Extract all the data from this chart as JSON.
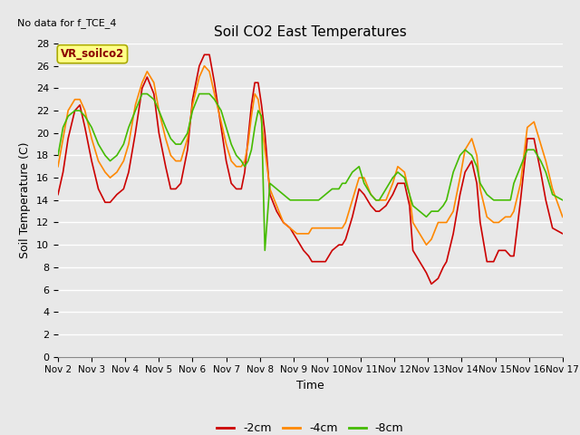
{
  "title": "Soil CO2 East Temperatures",
  "no_data_text": "No data for f_TCE_4",
  "label_text": "VR_soilco2",
  "xlabel": "Time",
  "ylabel": "Soil Temperature (C)",
  "ylim": [
    0,
    28
  ],
  "yticks": [
    0,
    2,
    4,
    6,
    8,
    10,
    12,
    14,
    16,
    18,
    20,
    22,
    24,
    26,
    28
  ],
  "background_color": "#e8e8e8",
  "series": {
    "-2cm": {
      "color": "#cc0000",
      "lw": 1.2
    },
    "-4cm": {
      "color": "#ff8800",
      "lw": 1.2
    },
    "-8cm": {
      "color": "#44bb00",
      "lw": 1.2
    }
  },
  "x_start": 2,
  "x_end": 17,
  "xtick_labels": [
    "Nov 2",
    "Nov 3",
    "Nov 4",
    "Nov 5",
    "Nov 6",
    "Nov 7",
    "Nov 8",
    "Nov 9",
    "Nov 10",
    "Nov 11",
    "Nov 12",
    "Nov 13",
    "Nov 14",
    "Nov 15",
    "Nov 16",
    "Nov 17"
  ],
  "xtick_positions": [
    2,
    3,
    4,
    5,
    6,
    7,
    8,
    9,
    10,
    11,
    12,
    13,
    14,
    15,
    16,
    17
  ],
  "cm2_x": [
    2.0,
    2.15,
    2.3,
    2.5,
    2.65,
    2.8,
    3.0,
    3.2,
    3.4,
    3.55,
    3.75,
    3.95,
    4.1,
    4.3,
    4.5,
    4.65,
    4.85,
    5.0,
    5.2,
    5.35,
    5.5,
    5.65,
    5.85,
    6.0,
    6.2,
    6.35,
    6.5,
    6.65,
    6.85,
    7.0,
    7.15,
    7.3,
    7.45,
    7.55,
    7.65,
    7.75,
    7.85,
    7.95,
    8.05,
    8.15,
    8.3,
    8.5,
    8.7,
    8.9,
    9.1,
    9.3,
    9.45,
    9.55,
    9.75,
    9.95,
    10.15,
    10.35,
    10.45,
    10.55,
    10.75,
    10.95,
    11.1,
    11.3,
    11.45,
    11.55,
    11.75,
    11.95,
    12.1,
    12.3,
    12.45,
    12.55,
    12.75,
    12.95,
    13.1,
    13.3,
    13.45,
    13.55,
    13.75,
    13.95,
    14.1,
    14.3,
    14.45,
    14.55,
    14.75,
    14.95,
    15.1,
    15.3,
    15.45,
    15.55,
    15.75,
    15.95,
    16.15,
    16.35,
    16.5,
    16.7,
    17.0
  ],
  "cm2_y": [
    14.5,
    16.5,
    19.5,
    22.0,
    22.5,
    20.5,
    17.5,
    15.0,
    13.8,
    13.8,
    14.5,
    15.0,
    16.5,
    20.0,
    24.0,
    25.0,
    23.5,
    20.0,
    17.0,
    15.0,
    15.0,
    15.5,
    18.5,
    23.0,
    26.0,
    27.0,
    27.0,
    24.5,
    20.5,
    17.5,
    15.5,
    15.0,
    15.0,
    16.5,
    19.5,
    22.5,
    24.5,
    24.5,
    22.5,
    20.0,
    14.5,
    13.0,
    12.0,
    11.5,
    10.5,
    9.5,
    9.0,
    8.5,
    8.5,
    8.5,
    9.5,
    10.0,
    10.0,
    10.5,
    12.5,
    15.0,
    14.5,
    13.5,
    13.0,
    13.0,
    13.5,
    14.5,
    15.5,
    15.5,
    13.5,
    9.5,
    8.5,
    7.5,
    6.5,
    7.0,
    8.0,
    8.5,
    11.0,
    14.5,
    16.5,
    17.5,
    15.5,
    12.0,
    8.5,
    8.5,
    9.5,
    9.5,
    9.0,
    9.0,
    14.0,
    19.5,
    19.5,
    16.5,
    14.0,
    11.5,
    11.0
  ],
  "cm4_x": [
    2.0,
    2.15,
    2.3,
    2.5,
    2.65,
    2.8,
    3.0,
    3.2,
    3.4,
    3.55,
    3.75,
    3.95,
    4.1,
    4.3,
    4.5,
    4.65,
    4.85,
    5.0,
    5.2,
    5.35,
    5.5,
    5.65,
    5.85,
    6.0,
    6.2,
    6.35,
    6.5,
    6.65,
    6.85,
    7.0,
    7.15,
    7.3,
    7.45,
    7.55,
    7.65,
    7.75,
    7.85,
    7.95,
    8.05,
    8.15,
    8.3,
    8.5,
    8.7,
    8.9,
    9.1,
    9.3,
    9.45,
    9.55,
    9.75,
    9.95,
    10.15,
    10.35,
    10.45,
    10.55,
    10.75,
    10.95,
    11.1,
    11.3,
    11.45,
    11.55,
    11.75,
    11.95,
    12.1,
    12.3,
    12.45,
    12.55,
    12.75,
    12.95,
    13.1,
    13.3,
    13.45,
    13.55,
    13.75,
    13.95,
    14.1,
    14.3,
    14.45,
    14.55,
    14.75,
    14.95,
    15.1,
    15.3,
    15.45,
    15.55,
    15.75,
    15.95,
    16.15,
    16.35,
    16.5,
    16.7,
    17.0
  ],
  "cm4_y": [
    17.0,
    19.5,
    22.0,
    23.0,
    23.0,
    22.0,
    19.5,
    17.5,
    16.5,
    16.0,
    16.5,
    17.5,
    19.0,
    22.5,
    24.5,
    25.5,
    24.5,
    22.0,
    19.5,
    18.0,
    17.5,
    17.5,
    19.5,
    22.5,
    25.0,
    26.0,
    25.5,
    23.5,
    21.0,
    19.0,
    17.5,
    17.0,
    17.0,
    17.5,
    19.0,
    21.5,
    23.5,
    23.0,
    21.0,
    18.5,
    15.0,
    13.5,
    12.0,
    11.5,
    11.0,
    11.0,
    11.0,
    11.5,
    11.5,
    11.5,
    11.5,
    11.5,
    11.5,
    12.0,
    14.0,
    16.0,
    16.0,
    14.5,
    14.0,
    14.0,
    14.0,
    15.5,
    17.0,
    16.5,
    14.5,
    12.0,
    11.0,
    10.0,
    10.5,
    12.0,
    12.0,
    12.0,
    13.0,
    16.0,
    18.5,
    19.5,
    18.0,
    15.0,
    12.5,
    12.0,
    12.0,
    12.5,
    12.5,
    13.0,
    15.5,
    20.5,
    21.0,
    19.0,
    17.5,
    15.0,
    12.5
  ],
  "cm8_x": [
    2.0,
    2.15,
    2.3,
    2.5,
    2.65,
    2.8,
    3.0,
    3.2,
    3.4,
    3.55,
    3.75,
    3.95,
    4.1,
    4.3,
    4.5,
    4.65,
    4.85,
    5.0,
    5.2,
    5.35,
    5.5,
    5.65,
    5.85,
    6.0,
    6.2,
    6.35,
    6.5,
    6.65,
    6.85,
    7.0,
    7.15,
    7.3,
    7.45,
    7.55,
    7.65,
    7.75,
    7.85,
    7.95,
    8.05,
    8.15,
    8.3,
    8.5,
    8.7,
    8.9,
    9.1,
    9.3,
    9.45,
    9.55,
    9.75,
    9.95,
    10.15,
    10.35,
    10.45,
    10.55,
    10.75,
    10.95,
    11.1,
    11.3,
    11.45,
    11.55,
    11.75,
    11.95,
    12.1,
    12.3,
    12.45,
    12.55,
    12.75,
    12.95,
    13.1,
    13.3,
    13.45,
    13.55,
    13.75,
    13.95,
    14.1,
    14.3,
    14.45,
    14.55,
    14.75,
    14.95,
    15.1,
    15.3,
    15.45,
    15.55,
    15.75,
    15.95,
    16.15,
    16.35,
    16.5,
    16.7,
    17.0
  ],
  "cm8_y": [
    18.0,
    20.5,
    21.5,
    22.0,
    22.0,
    21.5,
    20.5,
    19.0,
    18.0,
    17.5,
    18.0,
    19.0,
    20.5,
    22.0,
    23.5,
    23.5,
    23.0,
    22.0,
    20.5,
    19.5,
    19.0,
    19.0,
    20.0,
    22.0,
    23.5,
    23.5,
    23.5,
    23.0,
    22.0,
    20.5,
    19.0,
    18.0,
    17.5,
    17.0,
    17.5,
    18.5,
    20.5,
    22.0,
    21.5,
    9.5,
    15.5,
    15.0,
    14.5,
    14.0,
    14.0,
    14.0,
    14.0,
    14.0,
    14.0,
    14.5,
    15.0,
    15.0,
    15.5,
    15.5,
    16.5,
    17.0,
    15.5,
    14.5,
    14.0,
    14.0,
    15.0,
    16.0,
    16.5,
    16.0,
    14.5,
    13.5,
    13.0,
    12.5,
    13.0,
    13.0,
    13.5,
    14.0,
    16.5,
    18.0,
    18.5,
    18.0,
    17.0,
    15.5,
    14.5,
    14.0,
    14.0,
    14.0,
    14.0,
    15.5,
    17.0,
    18.5,
    18.5,
    17.5,
    16.5,
    14.5,
    14.0
  ]
}
